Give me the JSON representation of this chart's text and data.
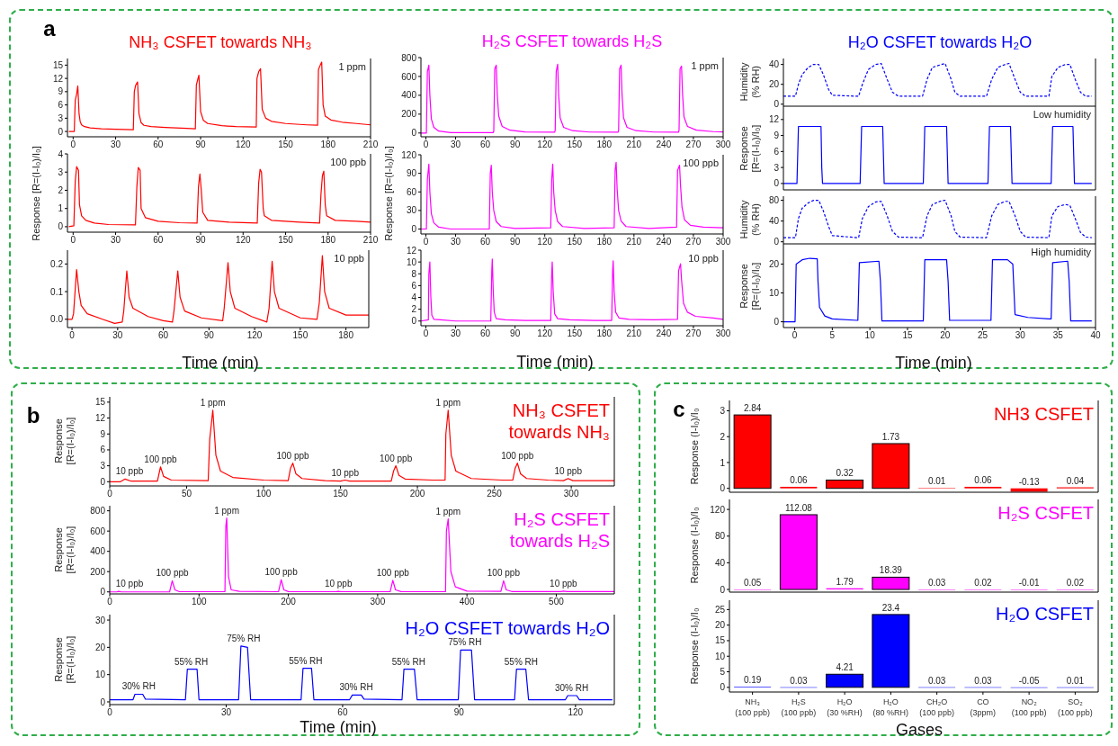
{
  "chart_data": [
    {
      "type": "line",
      "title": "NH₃ CSFET towards NH₃",
      "annotations": [
        "a",
        "1 ppm"
      ],
      "xlim": [
        -4,
        210
      ],
      "xticks": [
        0,
        30,
        60,
        90,
        120,
        150,
        180,
        210
      ],
      "ylim": [
        -1.2,
        16.5
      ],
      "yticks": [
        0,
        3,
        6,
        9,
        12,
        15
      ],
      "x": [
        -3,
        0.8,
        1.5,
        2.5,
        3.3,
        4.2,
        5,
        6,
        8,
        12,
        20,
        30,
        42.5,
        43.2,
        44.2,
        45.5,
        46.5,
        48,
        50,
        55,
        65,
        80,
        86.3,
        87,
        88,
        88.8,
        90,
        92,
        95,
        105,
        115,
        129.3,
        129.8,
        131,
        132.3,
        133.5,
        136,
        140,
        150,
        165,
        172.6,
        173.2,
        174.5,
        175.5,
        176.5,
        178,
        182,
        190,
        200,
        210
      ],
      "series": [
        {
          "color": "#ff0000",
          "values": [
            0,
            0,
            7,
            8.5,
            10.3,
            4,
            2.2,
            1.5,
            1.1,
            0.8,
            0.6,
            0.5,
            0.4,
            9,
            10.5,
            11.2,
            4,
            2,
            1.4,
            1.1,
            0.9,
            0.7,
            0.6,
            10.5,
            11.8,
            12.7,
            4.5,
            2.5,
            1.8,
            1.3,
            1.1,
            1.0,
            12,
            13.5,
            14.2,
            5,
            3,
            2.3,
            1.8,
            1.5,
            1.4,
            14,
            15,
            15.7,
            6,
            3.5,
            2.6,
            2.1,
            1.8,
            1.5
          ]
        }
      ]
    },
    {
      "type": "line",
      "ylabel": "Response [R=(I-I₀)/I₀]",
      "annotations": [
        "100 ppb"
      ],
      "xlim": [
        -4,
        210
      ],
      "xticks": [
        0,
        30,
        60,
        90,
        120,
        150,
        180,
        210
      ],
      "ylim": [
        -0.3,
        4
      ],
      "yticks": [
        0,
        1,
        2,
        3,
        4
      ],
      "x": [
        -3,
        0.5,
        1.5,
        2.5,
        3.8,
        4.5,
        6,
        9,
        15,
        25,
        44,
        45,
        46,
        47.3,
        48,
        51,
        60,
        75,
        87.5,
        88.5,
        89.5,
        90.5,
        91.5,
        95,
        110,
        130,
        131,
        132,
        133,
        134.2,
        135,
        140,
        160,
        174,
        175,
        176,
        177,
        178,
        179,
        185,
        200,
        210
      ],
      "series": [
        {
          "color": "#ff0000",
          "values": [
            0,
            0.05,
            2.5,
            3.3,
            3.1,
            1.2,
            0.6,
            0.35,
            0.2,
            0.12,
            0.1,
            2.2,
            3.25,
            3.1,
            1.0,
            0.5,
            0.3,
            0.22,
            0.2,
            2.2,
            2.9,
            2,
            0.8,
            0.35,
            0.25,
            0.2,
            2.4,
            3.15,
            3,
            1.0,
            0.6,
            0.35,
            0.25,
            0.2,
            1.8,
            2.8,
            3.05,
            1.2,
            0.6,
            0.35,
            0.3,
            0.25
          ]
        }
      ]
    },
    {
      "type": "line",
      "xlabel": "Time (min)",
      "annotations": [
        "10 ppb"
      ],
      "xlim": [
        -3,
        195
      ],
      "xticks": [
        0,
        30,
        60,
        90,
        120,
        150,
        180
      ],
      "ylim": [
        -0.03,
        0.25
      ],
      "yticks": [
        {
          "value": 0,
          "label": "0.0"
        },
        0.1,
        0.2
      ],
      "x": [
        -3,
        0,
        1,
        3,
        4.5,
        6,
        10,
        20,
        28,
        33,
        34,
        36,
        37.5,
        40,
        50,
        60,
        66,
        67,
        69.5,
        71,
        74,
        85,
        99,
        100,
        102.5,
        104,
        107,
        118,
        128,
        129.5,
        131.5,
        133,
        136,
        150,
        161,
        162.5,
        164.5,
        166,
        169,
        180,
        195
      ],
      "series": [
        {
          "color": "#ff0000",
          "values": [
            0,
            0,
            0.02,
            0.18,
            0.1,
            0.05,
            0.02,
            0.0,
            -0.015,
            -0.01,
            0.03,
            0.175,
            0.08,
            0.04,
            0.01,
            -0.005,
            -0.01,
            0.03,
            0.175,
            0.08,
            0.03,
            0.005,
            -0.005,
            0.04,
            0.205,
            0.1,
            0.04,
            0.01,
            -0.01,
            0.04,
            0.21,
            0.1,
            0.04,
            0.005,
            0.0,
            0.06,
            0.23,
            0.1,
            0.04,
            0.015,
            0.015
          ]
        }
      ]
    },
    {
      "type": "line",
      "title": "H₂S CSFET towards H₂S",
      "annotations": [
        "1 ppm"
      ],
      "xlim": [
        -5,
        300
      ],
      "xticks": [
        0,
        30,
        60,
        90,
        120,
        150,
        180,
        210,
        240,
        270,
        300
      ],
      "ylim": [
        -40,
        800
      ],
      "yticks": [
        0,
        200,
        400,
        600,
        800
      ],
      "x": [
        -5,
        0.5,
        1.5,
        3,
        4,
        5.5,
        8,
        13,
        25,
        68,
        68.5,
        69.5,
        71,
        72,
        73.5,
        77,
        85,
        100,
        130,
        130.5,
        131.5,
        133,
        134,
        135.5,
        139,
        148,
        165,
        194,
        194.5,
        195.5,
        197,
        198,
        199.5,
        203,
        212,
        230,
        255,
        255.5,
        256.5,
        258,
        259,
        260.5,
        264,
        273,
        290,
        300
      ],
      "series": [
        {
          "color": "#ff00ff",
          "values": [
            0,
            0,
            650,
            720,
            400,
            150,
            60,
            20,
            5,
            5,
            20,
            680,
            720,
            420,
            180,
            70,
            30,
            12,
            8,
            30,
            650,
            730,
            400,
            160,
            60,
            25,
            10,
            8,
            30,
            680,
            720,
            400,
            160,
            60,
            25,
            10,
            8,
            30,
            680,
            710,
            420,
            170,
            70,
            30,
            15,
            12
          ]
        }
      ]
    },
    {
      "type": "line",
      "ylabel": "Response [R=(I-I₀)/I₀]",
      "annotations": [
        "100 ppb"
      ],
      "xlim": [
        -5,
        300
      ],
      "xticks": [
        0,
        30,
        60,
        90,
        120,
        150,
        180,
        210,
        240,
        270,
        300
      ],
      "ylim": [
        -8,
        120
      ],
      "yticks": [
        0,
        30,
        60,
        90,
        120
      ],
      "x": [
        -5,
        0.5,
        1.5,
        3,
        4,
        5.5,
        8,
        13,
        25,
        64,
        65,
        66,
        67,
        68.5,
        71,
        76,
        90,
        126,
        127,
        128,
        129,
        130.5,
        133,
        138,
        160,
        190,
        191,
        192,
        193,
        194.5,
        197,
        202,
        225,
        253,
        254,
        256,
        257,
        258.5,
        261,
        267,
        280,
        300
      ],
      "series": [
        {
          "color": "#ff00ff",
          "values": [
            0,
            0,
            80,
            105,
            60,
            25,
            10,
            3,
            0,
            0,
            90,
            103,
            60,
            30,
            12,
            4,
            1,
            2,
            80,
            105,
            60,
            30,
            12,
            4,
            1,
            2,
            95,
            108,
            65,
            30,
            13,
            4,
            1,
            3,
            95,
            103,
            70,
            35,
            15,
            6,
            3,
            2
          ]
        }
      ]
    },
    {
      "type": "line",
      "xlabel": "Time (min)",
      "annotations": [
        "10 ppb"
      ],
      "xlim": [
        -5,
        300
      ],
      "xticks": [
        0,
        30,
        60,
        90,
        120,
        150,
        180,
        210,
        240,
        270,
        300
      ],
      "ylim": [
        -0.8,
        12
      ],
      "yticks": [
        0,
        2,
        4,
        6,
        8,
        10,
        12
      ],
      "x": [
        -5,
        2.5,
        3,
        4,
        5,
        6,
        8,
        15,
        30,
        65.5,
        66.5,
        67,
        68,
        69,
        71,
        80,
        100,
        126,
        127,
        127.5,
        128.5,
        130,
        133,
        145,
        170,
        187.5,
        188.5,
        189,
        190,
        191.5,
        195,
        205,
        230,
        254,
        255,
        257,
        258,
        260,
        264,
        272,
        290,
        300
      ],
      "series": [
        {
          "color": "#ff00ff",
          "values": [
            0,
            0.2,
            8,
            10,
            4,
            1,
            0.3,
            0.2,
            0,
            0,
            8.5,
            10.5,
            5,
            1.5,
            0.4,
            0.2,
            0.1,
            0.1,
            8,
            10,
            5,
            1.2,
            0.4,
            0.2,
            0.1,
            0.1,
            8.5,
            10.2,
            5,
            1.5,
            0.5,
            0.3,
            0.2,
            0.3,
            8.5,
            9.7,
            7,
            3,
            1.5,
            0.8,
            0.5,
            0.3
          ]
        }
      ]
    },
    {
      "type": "line",
      "title": "H₂O CSFET towards H₂O",
      "ylabel": "Humidity\n(% RH)",
      "tick_labels": "y",
      "xlim": [
        -1.5,
        40
      ],
      "xticks": [
        0,
        5,
        10,
        15,
        20,
        25,
        30,
        35,
        40
      ],
      "ylim": [
        -2,
        46
      ],
      "yticks": [
        0,
        20,
        40
      ],
      "x": [
        -1.5,
        0.1,
        0.5,
        1,
        1.8,
        2.5,
        3.2,
        3.8,
        4.5,
        5,
        8.3,
        8.5,
        9,
        9.8,
        10.8,
        11.5,
        12.3,
        13,
        13.8,
        16.8,
        17,
        17.6,
        18.3,
        19.5,
        20,
        20.8,
        21.3,
        22,
        25.3,
        25.5,
        26.2,
        27,
        28,
        28.5,
        29.3,
        30,
        30.7,
        33.7,
        33.8,
        34.2,
        35,
        36,
        36.6,
        37.3,
        38,
        38.7,
        39.5
      ],
      "series": [
        {
          "color": "#0000ff",
          "line_style": "dashed",
          "values": [
            8,
            8,
            20,
            30,
            37,
            40,
            40,
            30,
            15,
            9,
            8,
            8,
            20,
            35,
            40,
            41,
            25,
            12,
            8,
            8,
            8,
            25,
            37,
            40,
            41,
            25,
            12,
            8,
            8,
            8,
            25,
            37,
            40,
            41,
            25,
            12,
            8,
            8,
            8,
            28,
            37,
            40,
            40,
            25,
            12,
            8,
            8
          ]
        }
      ]
    },
    {
      "type": "line",
      "ylabel": "Response\n[R=(I-I₀)/I₀]",
      "annotations": [
        "Low humidity"
      ],
      "tick_labels": "y",
      "xlim": [
        -1.5,
        40
      ],
      "xticks": [
        0,
        5,
        10,
        15,
        20,
        25,
        30,
        35,
        40
      ],
      "ylim": [
        -1.2,
        14.5
      ],
      "yticks": [
        0,
        3,
        6,
        9,
        12
      ],
      "x": [
        -1.5,
        0.3,
        0.5,
        3.5,
        3.6,
        3.7,
        8.7,
        8.9,
        11.7,
        11.9,
        17.1,
        17.3,
        20.2,
        20.4,
        25.7,
        25.9,
        28.7,
        28.9,
        34.1,
        34.3,
        37,
        37.2,
        39.5
      ],
      "series": [
        {
          "color": "#0000ff",
          "values": [
            0,
            0,
            10.7,
            10.7,
            3,
            0,
            0,
            10.7,
            10.7,
            0,
            0,
            10.7,
            10.7,
            0,
            0,
            10.7,
            10.7,
            0,
            0,
            10.7,
            10.7,
            0,
            0
          ]
        }
      ]
    },
    {
      "type": "line",
      "ylabel": "Humidity\n(% RH)",
      "tick_labels": "y",
      "xlim": [
        -1.5,
        40
      ],
      "xticks": [
        0,
        5,
        10,
        15,
        20,
        25,
        30,
        35,
        40
      ],
      "ylim": [
        -4,
        88
      ],
      "yticks": [
        0,
        40,
        80
      ],
      "x": [
        -1.5,
        0.1,
        0.5,
        1,
        1.8,
        2.5,
        3.2,
        3.8,
        4.5,
        5,
        8.3,
        8.5,
        9,
        9.8,
        10.8,
        11.5,
        12.3,
        13,
        13.8,
        16.8,
        17,
        17.6,
        18.3,
        19.5,
        20,
        20.8,
        21.3,
        22,
        25.3,
        25.5,
        26.2,
        27,
        28,
        28.5,
        29.3,
        30,
        30.7,
        33.7,
        33.8,
        34.2,
        35,
        36,
        36.6,
        37.3,
        38,
        38.7,
        39.5
      ],
      "series": [
        {
          "color": "#0000ff",
          "line_style": "dashed",
          "values": [
            8,
            8,
            45,
            65,
            75,
            80,
            80,
            60,
            30,
            12,
            8,
            8,
            45,
            68,
            77,
            78,
            50,
            20,
            9,
            8,
            8,
            50,
            72,
            79,
            80,
            50,
            20,
            9,
            8,
            8,
            50,
            72,
            78,
            78,
            50,
            20,
            9,
            8,
            8,
            50,
            68,
            72,
            70,
            45,
            18,
            9,
            8
          ]
        }
      ]
    },
    {
      "type": "line",
      "ylabel": "Response\n[R=(I-I₀)/I₀]",
      "xlabel": "Time (min)",
      "annotations": [
        "High humidity"
      ],
      "xlim": [
        -1.5,
        40
      ],
      "xticks": [
        0,
        5,
        10,
        15,
        20,
        25,
        30,
        35,
        40
      ],
      "ylim": [
        -2,
        27
      ],
      "yticks": [
        0,
        10,
        20
      ],
      "x": [
        -1.5,
        0.05,
        0.2,
        1,
        2,
        3,
        3.1,
        3.3,
        4,
        5,
        8.3,
        8.4,
        8.6,
        11.2,
        11.4,
        11.6,
        16.9,
        17.1,
        17.3,
        20.2,
        20.4,
        20.6,
        25.9,
        26.1,
        26.3,
        28.3,
        29,
        29.3,
        31,
        33.8,
        34.1,
        34.3,
        36.3,
        36.5,
        36.7,
        39.5
      ],
      "series": [
        {
          "color": "#0000ff",
          "values": [
            0,
            0,
            20,
            21.5,
            22,
            21.8,
            14,
            5,
            2,
            1,
            0.5,
            0.5,
            20.5,
            21,
            14,
            0.3,
            0.3,
            0.3,
            21.5,
            21.5,
            14,
            0.5,
            0.5,
            0.5,
            21.5,
            21.5,
            20,
            2.5,
            1.5,
            1,
            1,
            20.5,
            21,
            14,
            0.3,
            0.3
          ]
        }
      ]
    },
    {
      "type": "line",
      "title": "NH₃ CSFET\ntowards NH₃",
      "ylabel": "Response\n[R=(I-I₀)/I₀]",
      "xlim": [
        0,
        328
      ],
      "xticks": [
        0,
        50,
        100,
        150,
        200,
        250,
        300
      ],
      "ylim": [
        -0.8,
        16
      ],
      "yticks": [
        0,
        3,
        6,
        9,
        12,
        15
      ],
      "annotations": [
        "b",
        {
          "text": "10 ppb",
          "x": 10,
          "y": 0.5
        },
        {
          "text": "100 ppb",
          "x": 33,
          "y": 2.8
        },
        {
          "text": "1 ppm",
          "x": 67,
          "y": 13.5
        },
        {
          "text": "100 ppb",
          "x": 119,
          "y": 3.5
        },
        {
          "text": "10 ppb",
          "x": 153,
          "y": 0.3
        },
        {
          "text": "100 ppb",
          "x": 186,
          "y": 3
        },
        {
          "text": "1 ppm",
          "x": 220,
          "y": 13.5
        },
        {
          "text": "100 ppb",
          "x": 265,
          "y": 3.5
        },
        {
          "text": "10 ppb",
          "x": 298,
          "y": 0.6
        }
      ],
      "x": [
        0,
        7,
        10,
        14,
        31,
        33,
        35,
        40,
        64,
        65,
        67,
        69,
        72,
        80,
        100,
        116,
        117.5,
        119,
        121,
        125,
        140,
        150,
        153,
        156,
        183,
        184.5,
        186,
        188,
        192,
        210,
        218,
        218.5,
        220,
        222,
        225,
        235,
        255,
        262,
        263.5,
        265,
        267,
        271,
        285,
        295,
        298,
        301,
        315,
        328
      ],
      "series": [
        {
          "color": "#ff0000",
          "values": [
            0,
            0,
            0.5,
            0.1,
            0.1,
            2.8,
            1,
            0.3,
            0.2,
            8,
            13.5,
            5,
            2,
            0.8,
            0.3,
            0.2,
            2.5,
            3.5,
            1.5,
            0.6,
            0.2,
            0.1,
            0.3,
            0.1,
            0.1,
            2,
            3,
            1.2,
            0.5,
            0.3,
            0.3,
            9,
            13.5,
            5,
            2,
            0.6,
            0.3,
            0.3,
            2.5,
            3.5,
            1.5,
            0.6,
            0.3,
            0.2,
            0.6,
            0.2,
            0.2,
            0.2
          ]
        }
      ]
    },
    {
      "type": "line",
      "title": "H₂S CSFET\ntowards H₂S",
      "ylabel": "Response\n[R=(I-I₀)/I₀]",
      "xlim": [
        0,
        565
      ],
      "xticks": [
        0,
        100,
        200,
        300,
        400,
        500
      ],
      "ylim": [
        -20,
        850
      ],
      "yticks": [
        0,
        200,
        400,
        600,
        800
      ],
      "annotations": [
        {
          "text": "10 ppb",
          "x": 10,
          "y": 5
        },
        {
          "text": "100 ppb",
          "x": 70,
          "y": 110
        },
        {
          "text": "1 ppm",
          "x": 131,
          "y": 730
        },
        {
          "text": "100 ppb",
          "x": 192,
          "y": 120
        },
        {
          "text": "10 ppb",
          "x": 256,
          "y": 5
        },
        {
          "text": "100 ppb",
          "x": 317,
          "y": 115
        },
        {
          "text": "1 ppm",
          "x": 379,
          "y": 720
        },
        {
          "text": "100 ppb",
          "x": 441,
          "y": 110
        },
        {
          "text": "10 ppb",
          "x": 508,
          "y": 8
        }
      ],
      "x": [
        0,
        8,
        10,
        13,
        67,
        70,
        73,
        78,
        129,
        130,
        131,
        133,
        136,
        145,
        189,
        192,
        195,
        200,
        253,
        256,
        259,
        314,
        317,
        320,
        326,
        376,
        377,
        379,
        382,
        387,
        400,
        438,
        441,
        444,
        450,
        505,
        508,
        512,
        565
      ],
      "series": [
        {
          "color": "#ff00ff",
          "values": [
            0,
            0,
            5,
            0,
            0,
            110,
            20,
            2,
            2,
            650,
            730,
            150,
            20,
            5,
            2,
            120,
            20,
            3,
            2,
            5,
            2,
            2,
            115,
            20,
            3,
            2,
            600,
            720,
            200,
            50,
            8,
            5,
            110,
            20,
            4,
            3,
            8,
            3,
            3
          ]
        }
      ]
    },
    {
      "type": "line",
      "title": "H₂O CSFET towards H₂O",
      "ylabel": "Response\n[R=(I-I₀)/I₀]",
      "xlabel": "Time (min)",
      "xlim": [
        0,
        130
      ],
      "xticks": [
        0,
        30,
        60,
        90,
        120
      ],
      "ylim": [
        -1,
        32
      ],
      "yticks": [
        0,
        10,
        20,
        30
      ],
      "annotations": [
        {
          "text": "30% RH",
          "x": 7.5,
          "y": 2.8
        },
        {
          "text": "55% RH",
          "x": 21,
          "y": 12
        },
        {
          "text": "75% RH",
          "x": 34.5,
          "y": 20.5
        },
        {
          "text": "55% RH",
          "x": 50.5,
          "y": 12.3
        },
        {
          "text": "30% RH",
          "x": 63.5,
          "y": 2.5
        },
        {
          "text": "55% RH",
          "x": 77,
          "y": 12
        },
        {
          "text": "75% RH",
          "x": 91.5,
          "y": 19
        },
        {
          "text": "55% RH",
          "x": 106,
          "y": 12
        },
        {
          "text": "30% RH",
          "x": 119,
          "y": 2.3
        }
      ],
      "x": [
        0,
        6,
        6.5,
        8.5,
        9.2,
        19.5,
        20,
        22.5,
        23,
        33.2,
        33.8,
        35.5,
        36.3,
        49.3,
        49.8,
        52,
        52.6,
        61.8,
        62.5,
        64.8,
        65.5,
        75.3,
        75.8,
        78.5,
        79.2,
        89.8,
        90.4,
        93.2,
        94,
        104.3,
        104.8,
        107.2,
        107.9,
        117.4,
        118,
        120.3,
        121,
        129.5
      ],
      "series": [
        {
          "color": "#0000ff",
          "values": [
            0.8,
            0.8,
            2.8,
            2.8,
            1,
            0.8,
            12,
            12,
            0.8,
            0.8,
            20.5,
            20,
            0.8,
            0.8,
            12.3,
            12.3,
            0.8,
            0.8,
            2.5,
            2.5,
            1,
            0.8,
            12,
            12,
            0.8,
            0.8,
            19,
            19,
            0.8,
            0.8,
            12,
            12,
            0.8,
            0.8,
            2.3,
            2.3,
            0.8,
            0.8
          ]
        }
      ]
    },
    {
      "type": "bar",
      "title": "NH3 CSFET",
      "ylabel": "Response (I-I₀)/I₀",
      "annotations": [
        "c"
      ],
      "tick_labels": "y",
      "data_labels": true,
      "ylim": [
        -0.15,
        3.4
      ],
      "yticks": [
        0,
        1,
        2,
        3
      ],
      "categories": [
        null,
        null,
        null,
        null,
        null,
        null,
        null,
        null
      ],
      "series": [
        {
          "color": "#ff0000",
          "values": [
            2.84,
            0.06,
            0.32,
            1.73,
            0.01,
            0.06,
            -0.13,
            0.04
          ]
        }
      ]
    },
    {
      "type": "bar",
      "title": "H₂S CSFET",
      "ylabel": "Response (I-I₀)/I₀",
      "tick_labels": "y",
      "data_labels": true,
      "ylim": [
        -4,
        135
      ],
      "yticks": [
        0,
        40,
        80,
        120
      ],
      "categories": [
        null,
        null,
        null,
        null,
        null,
        null,
        null,
        null
      ],
      "series": [
        {
          "color": "#ff00ff",
          "values": [
            0.05,
            112.08,
            1.79,
            18.39,
            0.03,
            0.02,
            -0.01,
            0.02
          ]
        }
      ]
    },
    {
      "type": "bar",
      "title": "H₂O CSFET",
      "ylabel": "Response (I-I₀)/I₀",
      "xlabel": "Gases",
      "data_labels": true,
      "ylim": [
        -1.5,
        28
      ],
      "yticks": [
        0,
        5,
        10,
        15,
        20,
        25
      ],
      "categories": [
        "NH₃\n(100 ppb)",
        "H₂S\n(100 ppb)",
        "H₂O\n(30 %RH)",
        "H₂O\n(80 %RH)",
        "CH₂O\n(100 ppb)",
        "CO\n(3ppm)",
        "NO₂\n(100 ppb)",
        "SO₂\n(100 ppb)"
      ],
      "series": [
        {
          "color": "#0000ff",
          "values": [
            0.19,
            0.03,
            4.21,
            23.4,
            0.03,
            0.03,
            -0.05,
            0.01
          ]
        }
      ]
    }
  ]
}
